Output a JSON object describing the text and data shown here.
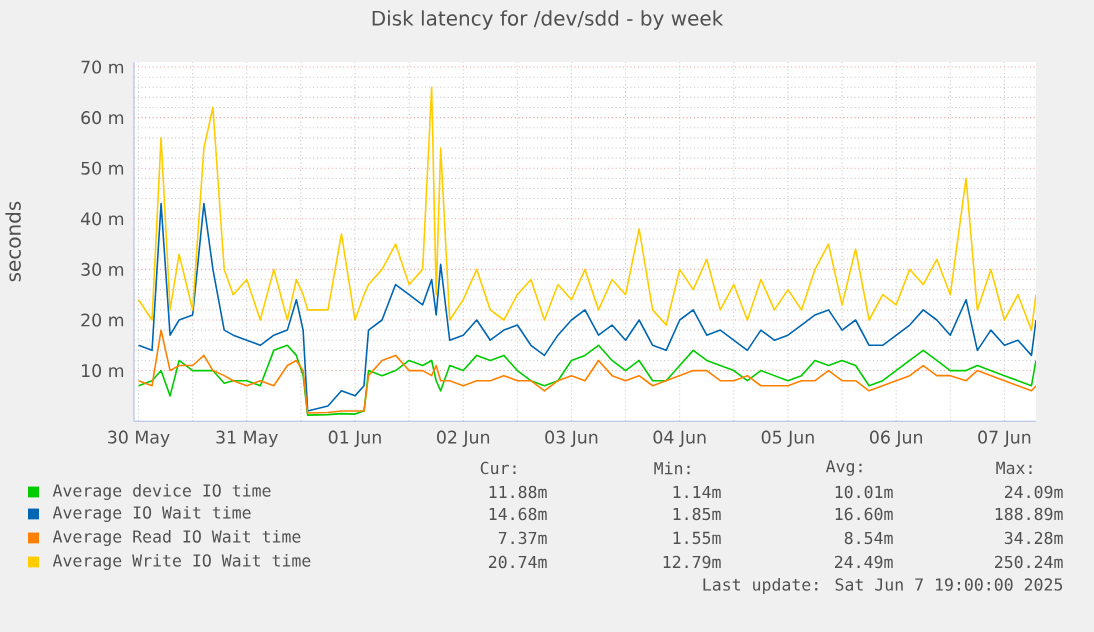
{
  "chart_data": {
    "type": "line",
    "title": "Disk latency for /dev/sdd - by week",
    "ylabel": "seconds",
    "x": [
      "2025-05-30T12:00",
      "2025-05-30T15:00",
      "2025-05-30T17:00",
      "2025-05-30T19:00",
      "2025-05-30T21:00",
      "2025-05-31T00:00",
      "2025-05-31T02:30",
      "2025-05-31T04:30",
      "2025-05-31T07:00",
      "2025-05-31T09:00",
      "2025-05-31T12:00",
      "2025-05-31T15:00",
      "2025-05-31T18:00",
      "2025-05-31T21:00",
      "2025-05-31T23:00",
      "2025-06-01T00:30",
      "2025-06-01T01:30",
      "2025-06-01T06:00",
      "2025-06-01T09:00",
      "2025-06-01T12:00",
      "2025-06-01T14:00",
      "2025-06-01T15:00",
      "2025-06-01T18:00",
      "2025-06-01T21:00",
      "2025-06-02T00:00",
      "2025-06-02T03:00",
      "2025-06-02T05:00",
      "2025-06-02T06:00",
      "2025-06-02T07:00",
      "2025-06-02T09:00",
      "2025-06-02T12:00",
      "2025-06-02T15:00",
      "2025-06-02T18:00",
      "2025-06-02T21:00",
      "2025-06-03T00:00",
      "2025-06-03T03:00",
      "2025-06-03T06:00",
      "2025-06-03T09:00",
      "2025-06-03T12:00",
      "2025-06-03T15:00",
      "2025-06-03T18:00",
      "2025-06-03T21:00",
      "2025-06-04T00:00",
      "2025-06-04T03:00",
      "2025-06-04T06:00",
      "2025-06-04T09:00",
      "2025-06-04T12:00",
      "2025-06-04T15:00",
      "2025-06-04T18:00",
      "2025-06-04T21:00",
      "2025-06-05T00:00",
      "2025-06-05T03:00",
      "2025-06-05T06:00",
      "2025-06-05T09:00",
      "2025-06-05T12:00",
      "2025-06-05T15:00",
      "2025-06-05T18:00",
      "2025-06-05T21:00",
      "2025-06-06T00:00",
      "2025-06-06T03:00",
      "2025-06-06T06:00",
      "2025-06-06T09:00",
      "2025-06-06T12:00",
      "2025-06-06T15:00",
      "2025-06-06T18:00",
      "2025-06-06T21:00",
      "2025-06-07T00:00",
      "2025-06-07T03:30",
      "2025-06-07T06:00",
      "2025-06-07T09:00",
      "2025-06-07T12:00",
      "2025-06-07T15:00",
      "2025-06-07T18:00",
      "2025-06-07T19:00"
    ],
    "series": [
      {
        "name": "Average device IO time",
        "color": "#00cc00",
        "values": [
          7,
          8,
          10,
          5,
          12,
          10,
          10,
          10,
          7.5,
          8,
          8,
          7,
          14,
          15,
          13,
          9,
          1.2,
          1.3,
          1.5,
          1.4,
          2,
          10,
          9,
          10,
          12,
          11,
          12,
          8,
          6,
          11,
          10,
          13,
          12,
          13,
          10,
          8,
          7,
          8,
          12,
          13,
          15,
          12,
          10,
          12,
          8,
          8,
          11,
          14,
          12,
          11,
          10,
          8,
          10,
          9,
          8,
          9,
          12,
          11,
          12,
          11,
          7,
          8,
          10,
          12,
          14,
          12,
          10,
          10,
          11,
          10,
          9,
          8,
          7,
          12
        ]
      },
      {
        "name": "Average IO Wait time",
        "color": "#0066b3",
        "values": [
          15,
          14,
          43,
          17,
          20,
          21,
          43,
          30,
          18,
          17,
          16,
          15,
          17,
          18,
          24,
          18,
          2,
          3,
          6,
          5,
          7,
          18,
          20,
          27,
          25,
          23,
          28,
          21,
          31,
          16,
          17,
          20,
          16,
          18,
          19,
          15,
          13,
          17,
          20,
          22,
          17,
          19,
          16,
          20,
          15,
          14,
          20,
          22,
          17,
          18,
          16,
          14,
          18,
          16,
          17,
          19,
          21,
          22,
          18,
          20,
          15,
          15,
          17,
          19,
          22,
          20,
          17,
          24,
          14,
          18,
          15,
          16,
          13,
          20
        ]
      },
      {
        "name": "Average Read IO Wait time",
        "color": "#ff8000",
        "values": [
          8,
          7,
          18,
          10,
          11,
          11,
          13,
          10,
          9,
          8,
          7,
          8,
          7,
          11,
          12,
          10,
          1.6,
          1.7,
          2,
          2,
          2,
          9,
          12,
          13,
          10,
          10,
          9,
          11,
          8,
          8,
          7,
          8,
          8,
          9,
          8,
          8,
          6,
          8,
          9,
          8,
          12,
          9,
          8,
          9,
          7,
          8,
          9,
          10,
          10,
          8,
          8,
          9,
          7,
          7,
          7,
          8,
          8,
          10,
          8,
          8,
          6,
          7,
          8,
          9,
          11,
          9,
          9,
          8,
          10,
          9,
          8,
          7,
          6,
          7
        ]
      },
      {
        "name": "Average Write IO Wait time",
        "color": "#ffcc00",
        "values": [
          24,
          20,
          56,
          22,
          33,
          22,
          54,
          62,
          30,
          25,
          28,
          20,
          30,
          20,
          28,
          25,
          22,
          22,
          37,
          20,
          25,
          27,
          30,
          35,
          27,
          30,
          66,
          25,
          54,
          20,
          24,
          30,
          22,
          20,
          25,
          28,
          20,
          27,
          24,
          30,
          22,
          28,
          25,
          38,
          22,
          19,
          30,
          26,
          32,
          22,
          27,
          20,
          28,
          22,
          26,
          22,
          30,
          35,
          23,
          34,
          20,
          25,
          23,
          30,
          27,
          32,
          25,
          48,
          22,
          30,
          20,
          25,
          18,
          25
        ]
      }
    ],
    "xlim": [
      "2025-05-30T11:00",
      "2025-06-07T19:00"
    ],
    "xticks": [
      {
        "value": "2025-05-30T12:00",
        "label": "30 May"
      },
      {
        "value": "2025-05-31T00:00",
        "label": null
      },
      {
        "value": "2025-05-31T12:00",
        "label": "31 May"
      },
      {
        "value": "2025-06-01T00:00",
        "label": null
      },
      {
        "value": "2025-06-01T12:00",
        "label": "01 Jun"
      },
      {
        "value": "2025-06-02T00:00",
        "label": null
      },
      {
        "value": "2025-06-02T12:00",
        "label": "02 Jun"
      },
      {
        "value": "2025-06-03T00:00",
        "label": null
      },
      {
        "value": "2025-06-03T12:00",
        "label": "03 Jun"
      },
      {
        "value": "2025-06-04T00:00",
        "label": null
      },
      {
        "value": "2025-06-04T12:00",
        "label": "04 Jun"
      },
      {
        "value": "2025-06-05T00:00",
        "label": null
      },
      {
        "value": "2025-06-05T12:00",
        "label": "05 Jun"
      },
      {
        "value": "2025-06-06T00:00",
        "label": null
      },
      {
        "value": "2025-06-06T12:00",
        "label": "06 Jun"
      },
      {
        "value": "2025-06-07T00:00",
        "label": null
      },
      {
        "value": "2025-06-07T12:00",
        "label": "07 Jun"
      }
    ],
    "ylim": [
      0,
      71
    ],
    "yticks": [
      {
        "value": 10,
        "label": "10 m"
      },
      {
        "value": 20,
        "label": "20 m"
      },
      {
        "value": 30,
        "label": "30 m"
      },
      {
        "value": 40,
        "label": "40 m"
      },
      {
        "value": 50,
        "label": "50 m"
      },
      {
        "value": 60,
        "label": "60 m"
      },
      {
        "value": 70,
        "label": "70 m"
      }
    ],
    "grid": true,
    "legend": "bottom",
    "annotations": [
      "Cur:",
      "Min:",
      "Avg:",
      "Max:",
      "11.88m",
      "1.14m",
      "10.01m",
      "24.09m",
      "14.68m",
      "1.85m",
      "16.60m",
      "188.89m",
      "7.37m",
      "1.55m",
      "8.54m",
      "34.28m",
      "20.74m",
      "12.79m",
      "24.49m",
      "250.24m",
      "Last update: Sat Jun  7 19:00:00 2025"
    ]
  }
}
